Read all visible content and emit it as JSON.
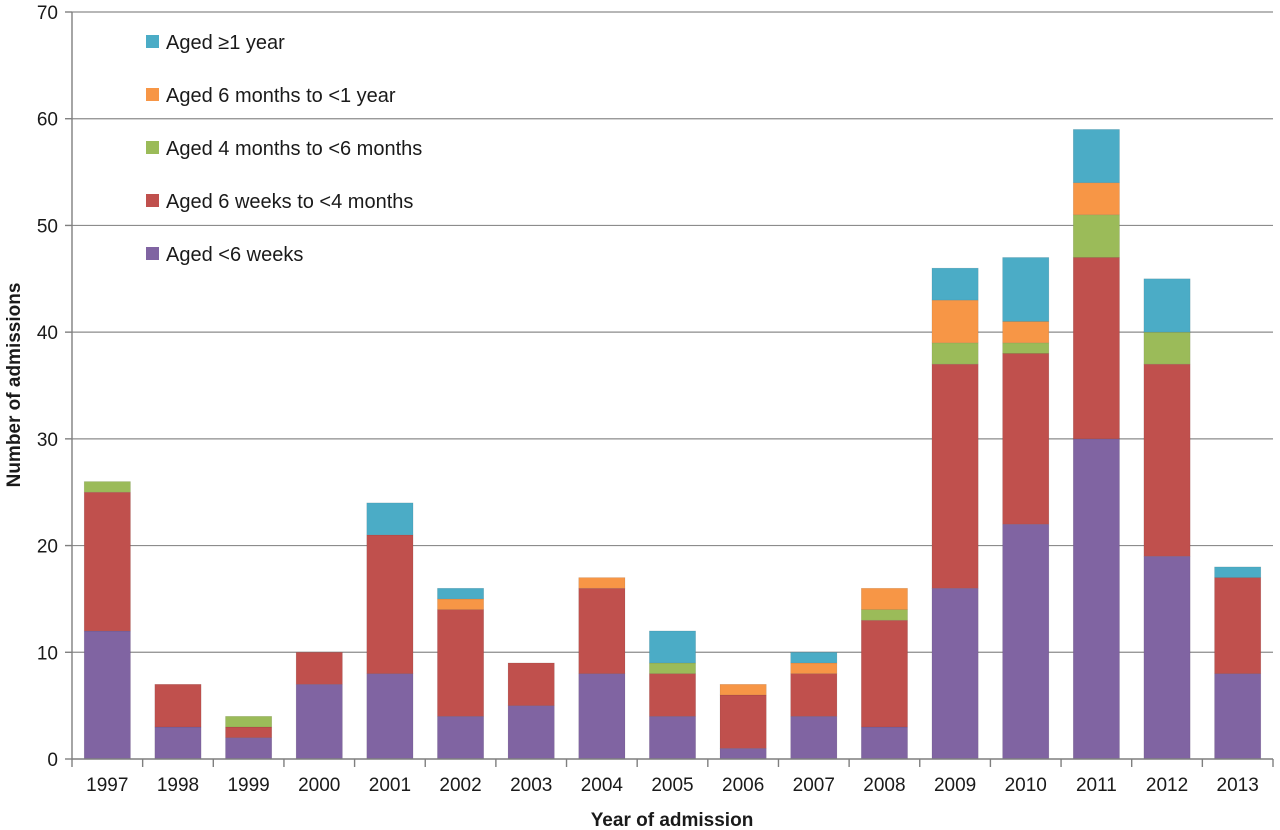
{
  "chart_data": {
    "type": "bar",
    "stacked": true,
    "xlabel": "Year of admission",
    "ylabel": "Number of admissions",
    "ylim": [
      0,
      70
    ],
    "yticks": [
      0,
      10,
      20,
      30,
      40,
      50,
      60,
      70
    ],
    "grid": true,
    "legend_position": "top-left",
    "categories": [
      "1997",
      "1998",
      "1999",
      "2000",
      "2001",
      "2002",
      "2003",
      "2004",
      "2005",
      "2006",
      "2007",
      "2008",
      "2009",
      "2010",
      "2011",
      "2012",
      "2013"
    ],
    "series": [
      {
        "name": "Aged <6 weeks",
        "color": "#8064a2",
        "values": [
          12,
          3,
          2,
          7,
          8,
          4,
          5,
          8,
          4,
          1,
          4,
          3,
          16,
          22,
          30,
          19,
          8
        ]
      },
      {
        "name": "Aged 6 weeks to <4 months",
        "color": "#c0504d",
        "values": [
          13,
          4,
          1,
          3,
          13,
          10,
          4,
          8,
          4,
          5,
          4,
          10,
          21,
          16,
          17,
          18,
          9
        ]
      },
      {
        "name": "Aged 4 months to <6 months",
        "color": "#9bbb59",
        "values": [
          1,
          0,
          1,
          0,
          0,
          0,
          0,
          0,
          1,
          0,
          0,
          1,
          2,
          1,
          4,
          3,
          0
        ]
      },
      {
        "name": "Aged 6 months to <1 year",
        "color": "#f79646",
        "values": [
          0,
          0,
          0,
          0,
          0,
          1,
          0,
          1,
          0,
          1,
          1,
          2,
          4,
          2,
          3,
          0,
          0
        ]
      },
      {
        "name": "Aged ≥1 year",
        "color": "#4bacc6",
        "values": [
          0,
          0,
          0,
          0,
          3,
          1,
          0,
          0,
          3,
          0,
          1,
          0,
          3,
          6,
          5,
          5,
          1
        ]
      }
    ],
    "legend_order": [
      "Aged ≥1 year",
      "Aged 6 months to <1 year",
      "Aged 4 months to <6 months",
      "Aged 6 weeks to <4 months",
      "Aged <6 weeks"
    ]
  }
}
